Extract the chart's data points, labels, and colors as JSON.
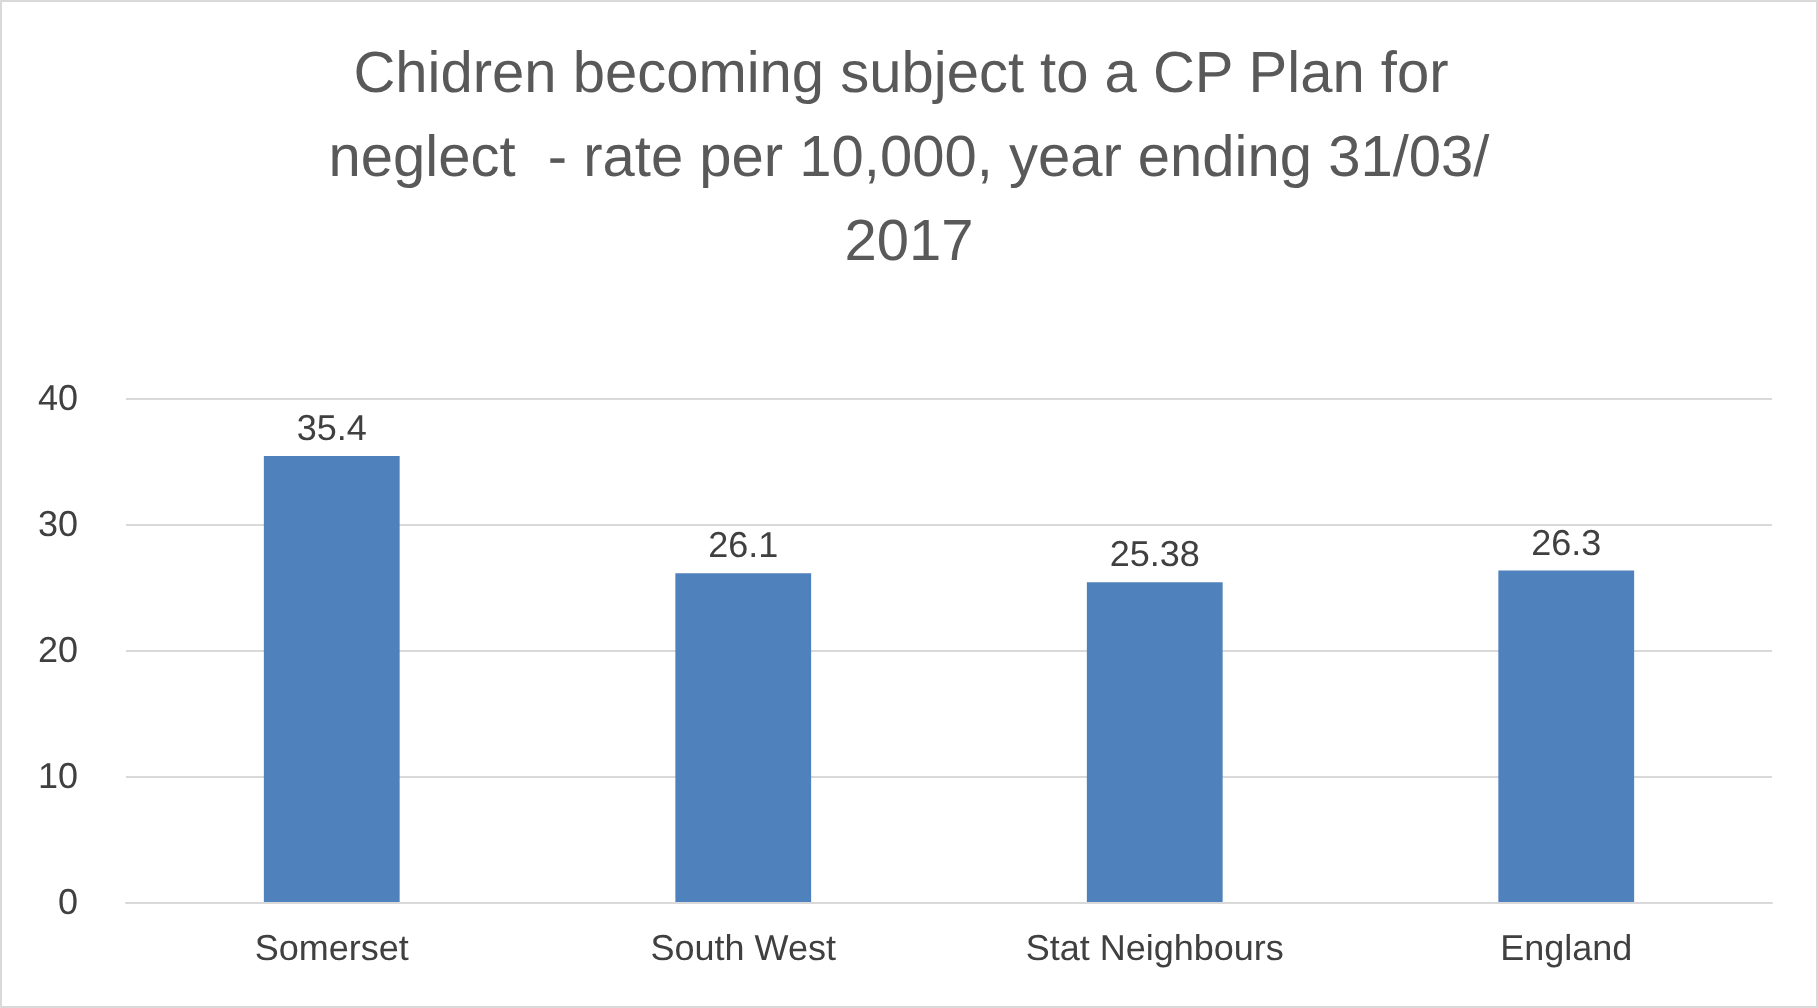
{
  "chart_data": {
    "type": "bar",
    "title": "Chidren becoming subject to a CP Plan for neglect  - rate per 10,000, year ending 31/03/2017",
    "categories": [
      "Somerset",
      "South West",
      "Stat Neighbours",
      "England"
    ],
    "values": [
      35.4,
      26.1,
      25.38,
      26.3
    ],
    "color": "#4f81bd",
    "ylim": [
      0,
      40
    ],
    "yticks": [
      0,
      10,
      20,
      30,
      40
    ],
    "grid": "y",
    "data_labels": true
  }
}
